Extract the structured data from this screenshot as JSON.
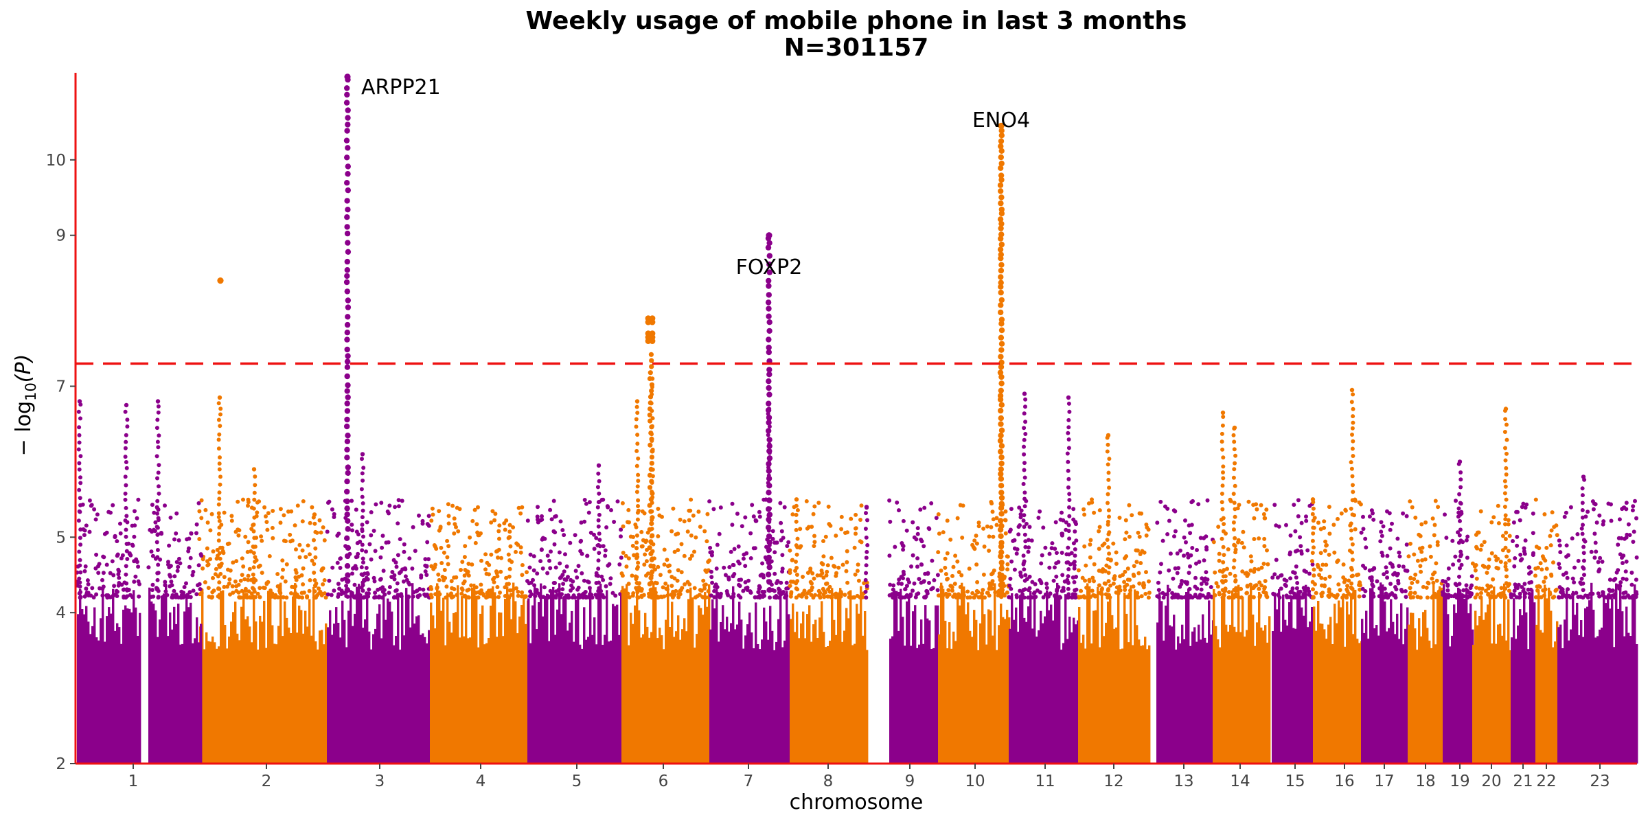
{
  "title": "Weekly usage of mobile phone in last 3 months",
  "subtitle": "N=301157",
  "xlabel": "chromosome",
  "ylabel_main": "− log",
  "ylabel_sub": "10",
  "ylabel_tail": "(P)",
  "colors": {
    "purple": "#8b008b",
    "orange": "#f07800",
    "axis": "#ee1111",
    "threshold": "#ee1111"
  },
  "chart_data": {
    "type": "scatter",
    "subtype": "manhattan",
    "ylim": [
      2,
      11.2
    ],
    "yticks": [
      2,
      4,
      5,
      7,
      9,
      10
    ],
    "threshold": 7.3,
    "threshold_style": "dashed",
    "grid": false,
    "chromosomes": [
      "1",
      "2",
      "3",
      "4",
      "5",
      "6",
      "7",
      "8",
      "9",
      "10",
      "11",
      "12",
      "13",
      "14",
      "15",
      "16",
      "17",
      "18",
      "19",
      "20",
      "21",
      "22",
      "23"
    ],
    "chromosome_colors": [
      "purple",
      "orange",
      "purple",
      "orange",
      "purple",
      "orange",
      "purple",
      "orange",
      "purple",
      "orange",
      "purple",
      "orange",
      "purple",
      "orange",
      "purple",
      "orange",
      "purple",
      "orange",
      "purple",
      "orange",
      "purple",
      "orange",
      "purple"
    ],
    "peaks": [
      {
        "chromosome": "3",
        "label": "ARPP21",
        "max_logp": 11.1
      },
      {
        "chromosome": "7",
        "label": "FOXP2",
        "max_logp": 9.0
      },
      {
        "chromosome": "10",
        "label": "ENO4",
        "max_logp": 10.45
      },
      {
        "chromosome": "6",
        "label": "",
        "max_logp": 7.9
      },
      {
        "chromosome": "2",
        "label": "",
        "max_logp": 8.4
      }
    ]
  }
}
